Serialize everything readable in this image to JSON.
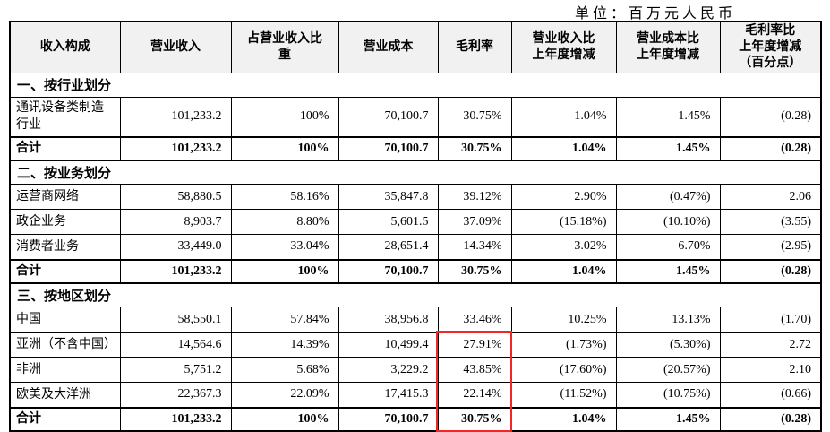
{
  "unit_label": "单位：百万元人民币",
  "table": {
    "columns": [
      {
        "label": "收入构成"
      },
      {
        "label": "营业收入"
      },
      {
        "label": "占营业收入比\n重"
      },
      {
        "label": "营业成本"
      },
      {
        "label": "毛利率"
      },
      {
        "label": "营业收入比\n上年度增减"
      },
      {
        "label": "营业成本比\n上年度增减"
      },
      {
        "label": "毛利率比\n上年度增减\n（百分点）"
      }
    ],
    "sections": [
      {
        "title": "一、按行业划分",
        "rows": [
          {
            "label": "通讯设备类制造行业",
            "bold": false,
            "values": [
              "101,233.2",
              "100%",
              "70,100.7",
              "30.75%",
              "1.04%",
              "1.45%",
              "(0.28)"
            ]
          },
          {
            "label": "合计",
            "bold": true,
            "values": [
              "101,233.2",
              "100%",
              "70,100.7",
              "30.75%",
              "1.04%",
              "1.45%",
              "(0.28)"
            ]
          }
        ]
      },
      {
        "title": "二、按业务划分",
        "rows": [
          {
            "label": "运营商网络",
            "bold": false,
            "values": [
              "58,880.5",
              "58.16%",
              "35,847.8",
              "39.12%",
              "2.90%",
              "(0.47%)",
              "2.06"
            ]
          },
          {
            "label": "政企业务",
            "bold": false,
            "values": [
              "8,903.7",
              "8.80%",
              "5,601.5",
              "37.09%",
              "(15.18%)",
              "(10.10%)",
              "(3.55)"
            ]
          },
          {
            "label": "消费者业务",
            "bold": false,
            "values": [
              "33,449.0",
              "33.04%",
              "28,651.4",
              "14.34%",
              "3.02%",
              "6.70%",
              "(2.95)"
            ]
          },
          {
            "label": "合计",
            "bold": true,
            "values": [
              "101,233.2",
              "100%",
              "70,100.7",
              "30.75%",
              "1.04%",
              "1.45%",
              "(0.28)"
            ]
          }
        ]
      },
      {
        "title": "三、按地区划分",
        "rows": [
          {
            "label": "中国",
            "bold": false,
            "values": [
              "58,550.1",
              "57.84%",
              "38,956.8",
              "33.46%",
              "10.25%",
              "13.13%",
              "(1.70)"
            ]
          },
          {
            "label": "亚洲（不含中国）",
            "bold": false,
            "values": [
              "14,564.6",
              "14.39%",
              "10,499.4",
              "27.91%",
              "(1.73%)",
              "(5.30%)",
              "2.72"
            ]
          },
          {
            "label": "非洲",
            "bold": false,
            "values": [
              "5,751.2",
              "5.68%",
              "3,229.2",
              "43.85%",
              "(17.60%)",
              "(20.57%)",
              "2.10"
            ]
          },
          {
            "label": "欧美及大洋洲",
            "bold": false,
            "values": [
              "22,367.3",
              "22.09%",
              "17,415.3",
              "22.14%",
              "(11.52%)",
              "(10.75%)",
              "(0.66)"
            ]
          },
          {
            "label": "合计",
            "bold": true,
            "values": [
              "101,233.2",
              "100%",
              "70,100.7",
              "30.75%",
              "1.04%",
              "1.45%",
              "(0.28)"
            ]
          }
        ]
      }
    ]
  },
  "highlight": {
    "color": "#f42525",
    "section_index": 2,
    "first_row_index": 1,
    "last_row_index": 4,
    "value_index": 3,
    "highlighted_values": [
      "27.91%",
      "43.85%",
      "22.14%",
      "30.75%"
    ]
  }
}
